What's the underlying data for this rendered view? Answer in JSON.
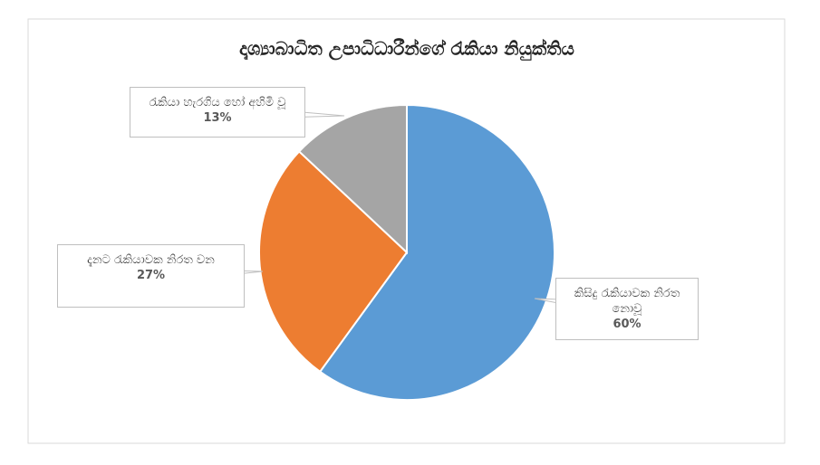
{
  "chart_data": {
    "type": "pie",
    "title": "දෘශ්‍යාබාධිත උපාධිධාරීන්ගේ රැකියා නියුක්තිය",
    "categories": [
      "කිසිදු රැකියාවක නිරත නොවූ",
      "දැනට රැකියාවක නිරත වන",
      "රැකියා හැරගිය හෝ අහිමි වූ"
    ],
    "values": [
      60,
      27,
      13
    ],
    "value_labels": [
      "60%",
      "27%",
      "13%"
    ],
    "colors": [
      "#5b9bd5",
      "#ed7d31",
      "#a5a5a5"
    ]
  }
}
